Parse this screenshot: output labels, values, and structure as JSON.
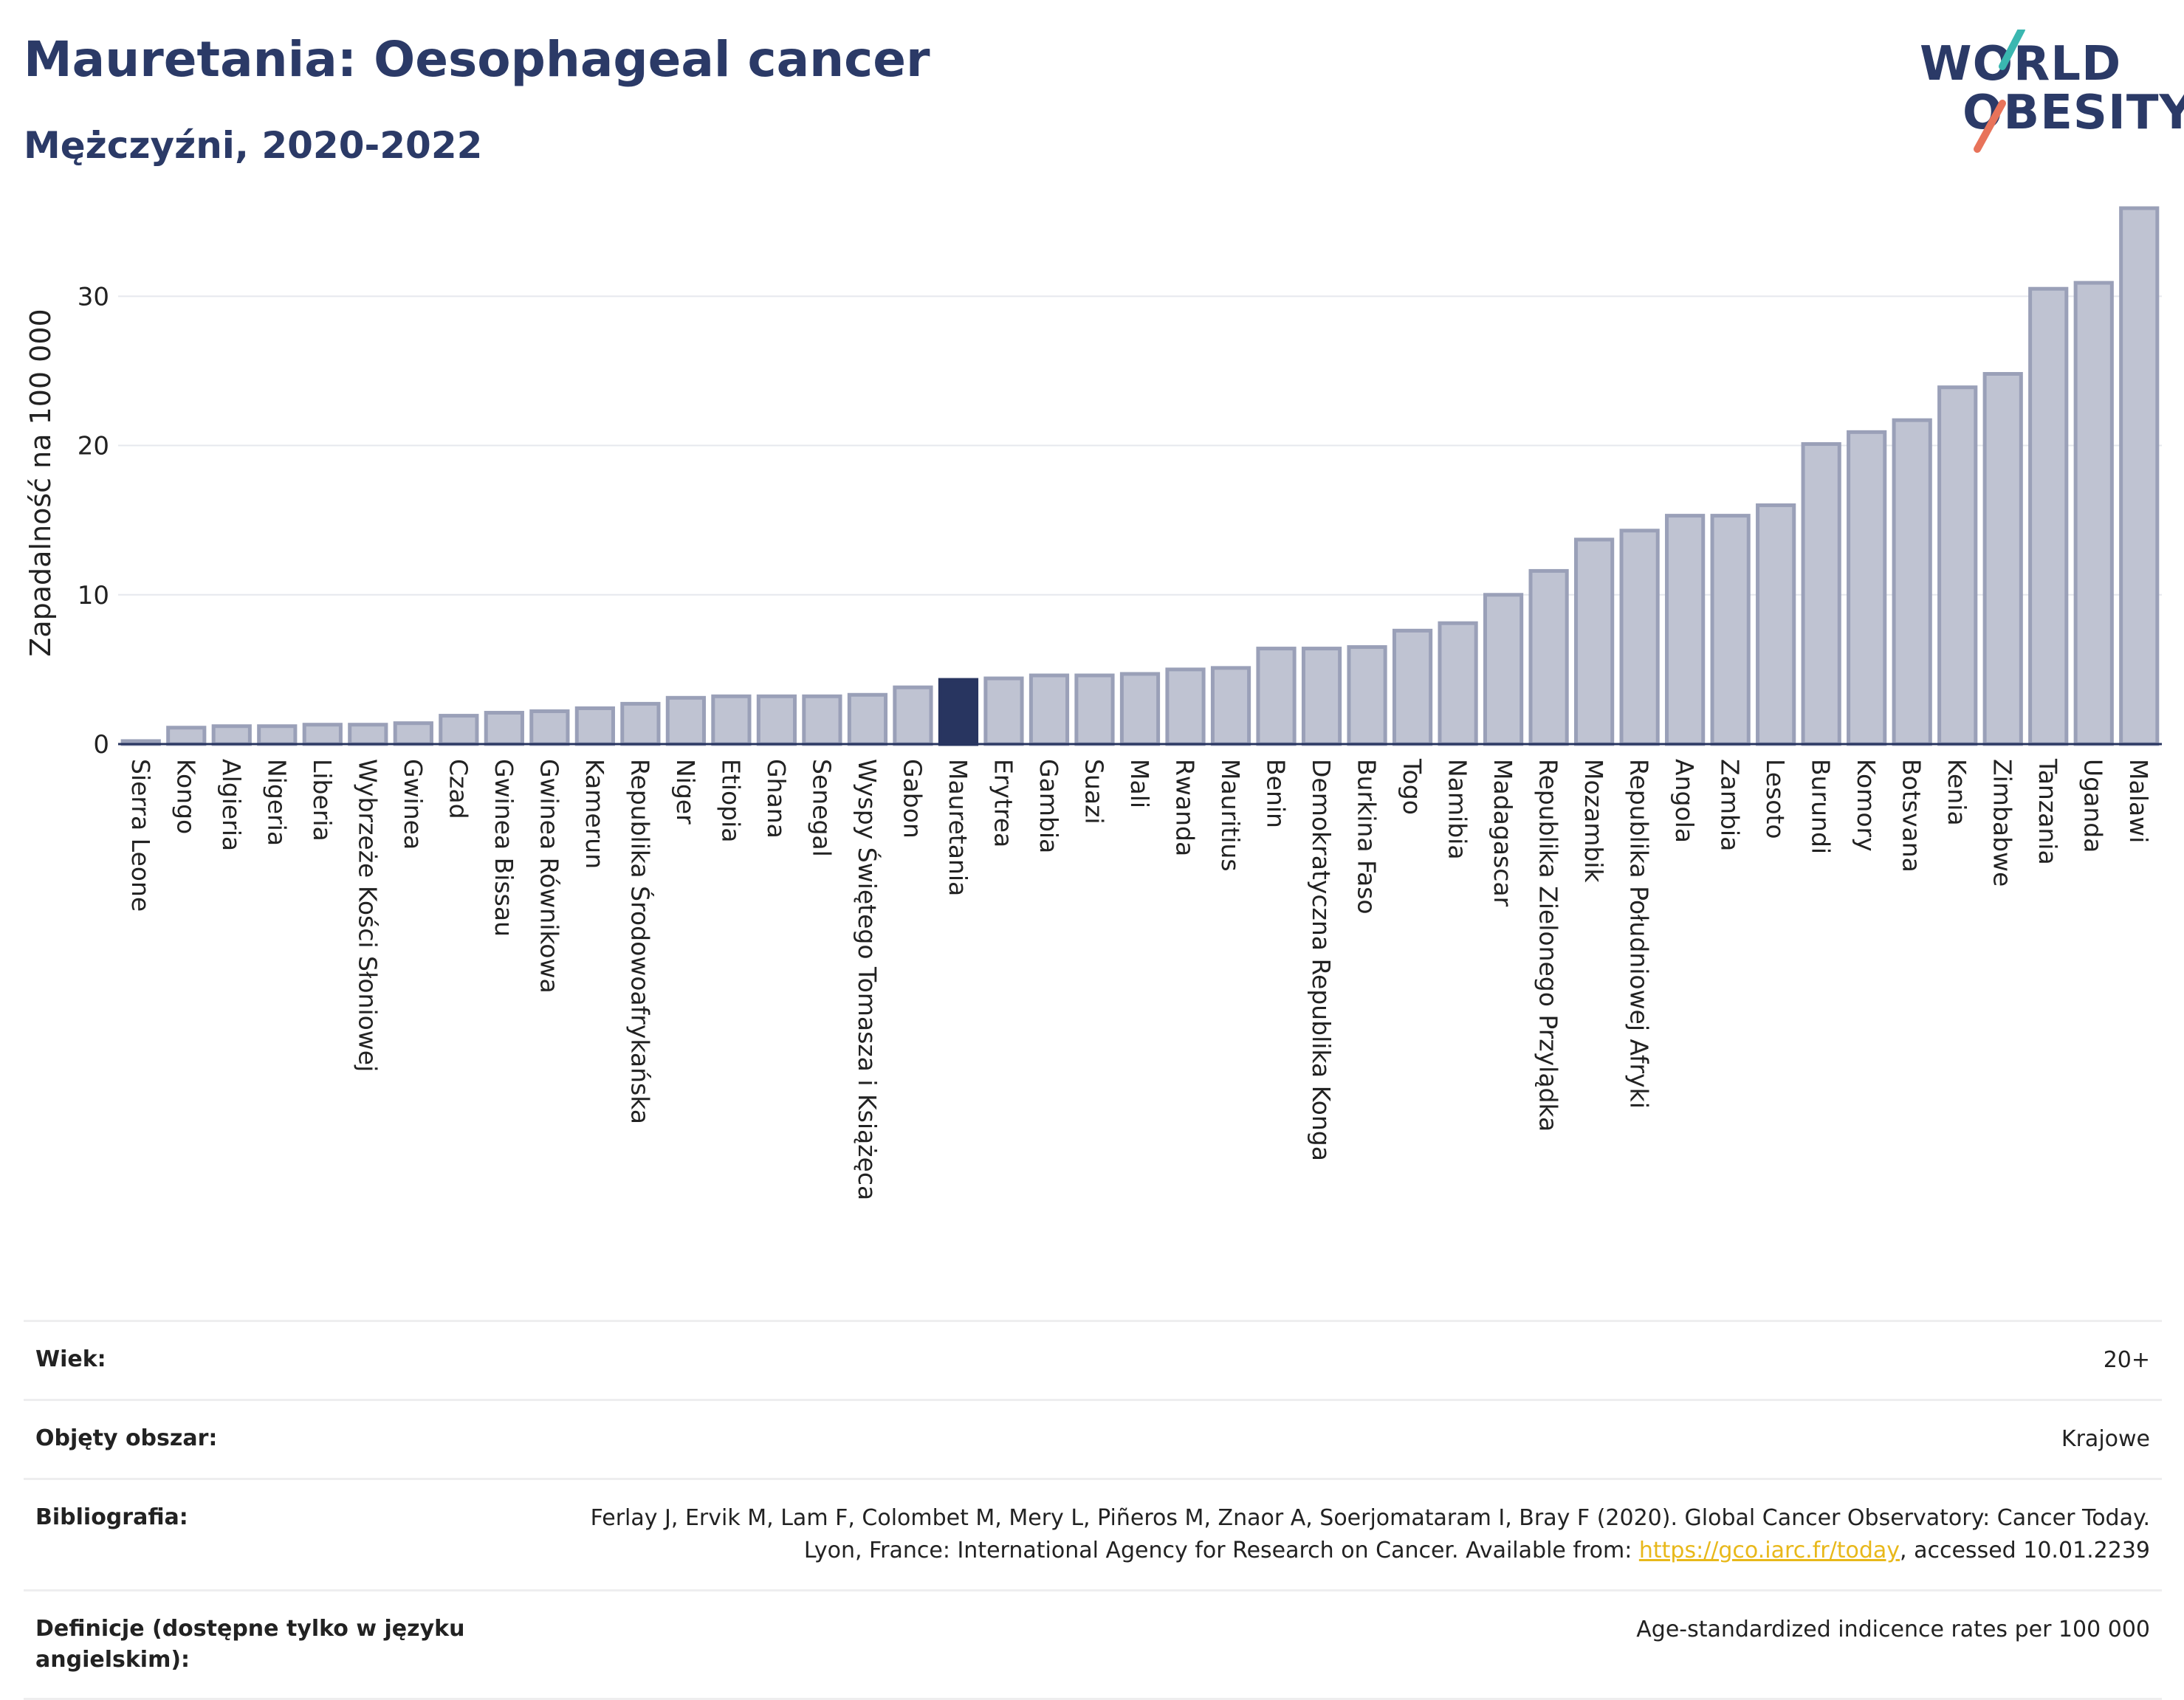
{
  "header": {
    "title": "Mauretania: Oesophageal cancer",
    "subtitle": "Mężczyźni, 2020-2022"
  },
  "logo": {
    "line1": "WORLD",
    "line2": "OBESITY",
    "accent_teal": "#3ab7b0",
    "accent_red": "#e8735a"
  },
  "chart_data": {
    "type": "bar",
    "ylabel": "Zapadalność na 100 000",
    "ylim": [
      0,
      36
    ],
    "yticks": [
      0,
      10,
      20,
      30
    ],
    "highlight": "Mauretania",
    "bar_color": "#bfc3d2",
    "bar_edge": "#9aa0b8",
    "highlight_color": "#283560",
    "categories": [
      "Sierra Leone",
      "Kongo",
      "Algieria",
      "Nigeria",
      "Liberia",
      "Wybrzeże Kości Słoniowej",
      "Gwinea",
      "Czad",
      "Gwinea Bissau",
      "Gwinea Równikowa",
      "Kamerun",
      "Republika Środowoafrykańska",
      "Niger",
      "Etiopia",
      "Ghana",
      "Senegal",
      "Wyspy Świętego Tomasza i Książęca",
      "Gabon",
      "Mauretania",
      "Erytrea",
      "Gambia",
      "Suazi",
      "Mali",
      "Rwanda",
      "Mauritius",
      "Benin",
      "Demokratyczna Republika Konga",
      "Burkina Faso",
      "Togo",
      "Namibia",
      "Madagascar",
      "Republika Zielonego Przylądka",
      "Mozambik",
      "Republika Południowej Afryki",
      "Angola",
      "Zambia",
      "Lesoto",
      "Burundi",
      "Komory",
      "Botsvana",
      "Kenia",
      "Zimbabwe",
      "Tanzania",
      "Uganda",
      "Malawi"
    ],
    "values": [
      0.2,
      1.1,
      1.2,
      1.2,
      1.3,
      1.3,
      1.4,
      1.9,
      2.1,
      2.2,
      2.4,
      2.7,
      3.1,
      3.2,
      3.2,
      3.2,
      3.3,
      3.8,
      4.3,
      4.4,
      4.6,
      4.6,
      4.7,
      5.0,
      5.1,
      6.4,
      6.4,
      6.5,
      7.6,
      8.1,
      10.0,
      11.6,
      13.7,
      14.3,
      15.3,
      15.3,
      16.0,
      20.1,
      20.9,
      21.7,
      23.9,
      24.8,
      30.5,
      30.9,
      35.9
    ]
  },
  "meta": {
    "age_label": "Wiek:",
    "age_value": "20+",
    "area_label": "Objęty obszar:",
    "area_value": "Krajowe",
    "bib_label": "Bibliografia:",
    "bib_text1": "Ferlay J, Ervik M, Lam F, Colombet M, Mery L, Piñeros M, Znaor A, Soerjomataram I, Bray F (2020). Global Cancer Observatory: Cancer Today. Lyon, France: International Agency for Research on Cancer. Available from: ",
    "bib_link": "https://gco.iarc.fr/today",
    "bib_text2": ", accessed 10.01.2239",
    "def_label": "Definicje (dostępne tylko w języku angielskim):",
    "def_value": "Age-standardized indicence rates per 100 000"
  }
}
